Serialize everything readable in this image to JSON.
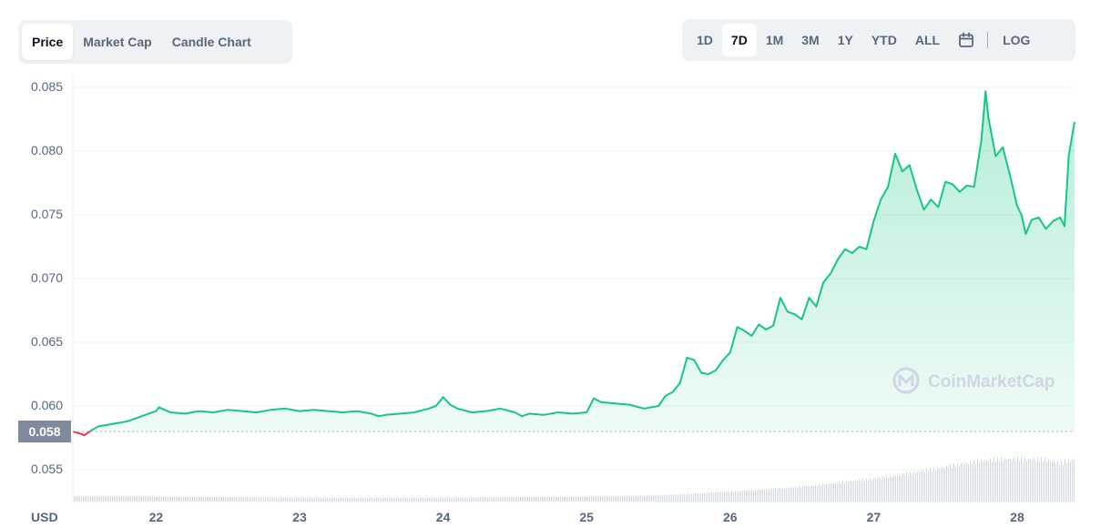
{
  "tabs": [
    {
      "label": "Price",
      "active": true
    },
    {
      "label": "Market Cap",
      "active": false
    },
    {
      "label": "Candle Chart",
      "active": false
    }
  ],
  "ranges": [
    {
      "label": "1D",
      "active": false
    },
    {
      "label": "7D",
      "active": true
    },
    {
      "label": "1M",
      "active": false
    },
    {
      "label": "3M",
      "active": false
    },
    {
      "label": "1Y",
      "active": false
    },
    {
      "label": "YTD",
      "active": false
    },
    {
      "label": "ALL",
      "active": false
    }
  ],
  "calendar_icon": "calendar-icon",
  "log_label": "LOG",
  "watermark": "CoinMarketCap",
  "colors": {
    "up": "#16c784",
    "down": "#ea3943",
    "grid": "#eff2f5",
    "axis_text": "#58667e",
    "badge": "#808a9d",
    "volume": "#cfd6e4",
    "watermark": "#cfd6e4"
  },
  "chart_data": {
    "type": "area",
    "currency_label": "USD",
    "x_ticks": [
      "22",
      "23",
      "24",
      "25",
      "26",
      "27",
      "28"
    ],
    "x_tick_positions": [
      22,
      23,
      24,
      25,
      26,
      27,
      28
    ],
    "xlim": [
      21.42,
      28.4
    ],
    "ylim": [
      0.0525,
      0.086
    ],
    "y_ticks": [
      "0.055",
      "0.060",
      "0.065",
      "0.070",
      "0.075",
      "0.080",
      "0.085"
    ],
    "y_tick_values": [
      0.055,
      0.06,
      0.065,
      0.07,
      0.075,
      0.08,
      0.085
    ],
    "reference_value": 0.058,
    "reference_label": "0.058",
    "grid": true,
    "price": {
      "x": [
        21.42,
        21.48,
        21.5,
        21.55,
        21.6,
        21.7,
        21.8,
        21.9,
        22.0,
        22.02,
        22.1,
        22.2,
        22.3,
        22.4,
        22.5,
        22.6,
        22.7,
        22.8,
        22.9,
        23.0,
        23.1,
        23.2,
        23.3,
        23.4,
        23.5,
        23.55,
        23.6,
        23.7,
        23.8,
        23.9,
        23.95,
        24.0,
        24.05,
        24.1,
        24.2,
        24.3,
        24.4,
        24.5,
        24.55,
        24.6,
        24.7,
        24.8,
        24.9,
        25.0,
        25.05,
        25.1,
        25.2,
        25.3,
        25.4,
        25.5,
        25.55,
        25.6,
        25.65,
        25.7,
        25.75,
        25.8,
        25.85,
        25.9,
        25.95,
        26.0,
        26.05,
        26.1,
        26.15,
        26.2,
        26.25,
        26.3,
        26.35,
        26.4,
        26.45,
        26.5,
        26.55,
        26.6,
        26.65,
        26.7,
        26.75,
        26.8,
        26.85,
        26.9,
        26.95,
        27.0,
        27.05,
        27.1,
        27.15,
        27.2,
        27.25,
        27.3,
        27.35,
        27.4,
        27.45,
        27.5,
        27.55,
        27.6,
        27.65,
        27.7,
        27.75,
        27.78,
        27.8,
        27.85,
        27.9,
        27.95,
        28.0,
        28.03,
        28.06,
        28.1,
        28.15,
        28.2,
        28.25,
        28.3,
        28.33,
        28.36,
        28.4
      ],
      "y": [
        0.058,
        0.0578,
        0.0577,
        0.0581,
        0.0584,
        0.0586,
        0.0588,
        0.0592,
        0.0596,
        0.0599,
        0.0595,
        0.0594,
        0.0596,
        0.0595,
        0.0597,
        0.0596,
        0.0595,
        0.0597,
        0.0598,
        0.0596,
        0.0597,
        0.0596,
        0.0595,
        0.0596,
        0.0594,
        0.0592,
        0.0593,
        0.0594,
        0.0595,
        0.0598,
        0.06,
        0.0607,
        0.0601,
        0.0598,
        0.0595,
        0.0596,
        0.0598,
        0.0595,
        0.0592,
        0.0594,
        0.0593,
        0.0595,
        0.0594,
        0.0595,
        0.0606,
        0.0603,
        0.0602,
        0.0601,
        0.0598,
        0.06,
        0.0608,
        0.0611,
        0.0618,
        0.0638,
        0.0636,
        0.0626,
        0.0625,
        0.0628,
        0.0636,
        0.0642,
        0.0662,
        0.0659,
        0.0655,
        0.0664,
        0.066,
        0.0663,
        0.0685,
        0.0674,
        0.0672,
        0.0668,
        0.0685,
        0.0678,
        0.0697,
        0.0704,
        0.0715,
        0.0723,
        0.072,
        0.0725,
        0.0723,
        0.0745,
        0.0762,
        0.0772,
        0.0798,
        0.0784,
        0.0789,
        0.077,
        0.0754,
        0.0762,
        0.0756,
        0.0776,
        0.0774,
        0.0768,
        0.0773,
        0.0772,
        0.0808,
        0.0847,
        0.0826,
        0.0796,
        0.0803,
        0.0781,
        0.0757,
        0.075,
        0.0735,
        0.0746,
        0.0748,
        0.0739,
        0.0745,
        0.0748,
        0.0741,
        0.0797,
        0.0823
      ]
    },
    "volume": {
      "x": [
        21.42,
        21.6,
        21.8,
        22.0,
        22.2,
        22.4,
        22.6,
        22.8,
        23.0,
        23.2,
        23.4,
        23.6,
        23.8,
        24.0,
        24.2,
        24.4,
        24.6,
        24.8,
        25.0,
        25.2,
        25.4,
        25.6,
        25.8,
        26.0,
        26.2,
        26.4,
        26.6,
        26.8,
        27.0,
        27.2,
        27.4,
        27.6,
        27.8,
        28.0,
        28.2,
        28.3,
        28.4
      ],
      "values": [
        6,
        6,
        6,
        5.5,
        5,
        5,
        4.8,
        4.6,
        4.5,
        4.4,
        4.3,
        4.3,
        4.4,
        4.5,
        4.6,
        4.8,
        5,
        5.2,
        5.5,
        6,
        6.5,
        7.5,
        9,
        11,
        13,
        15,
        18,
        22,
        25,
        30,
        35,
        41,
        46,
        47,
        46,
        42,
        46
      ]
    }
  }
}
